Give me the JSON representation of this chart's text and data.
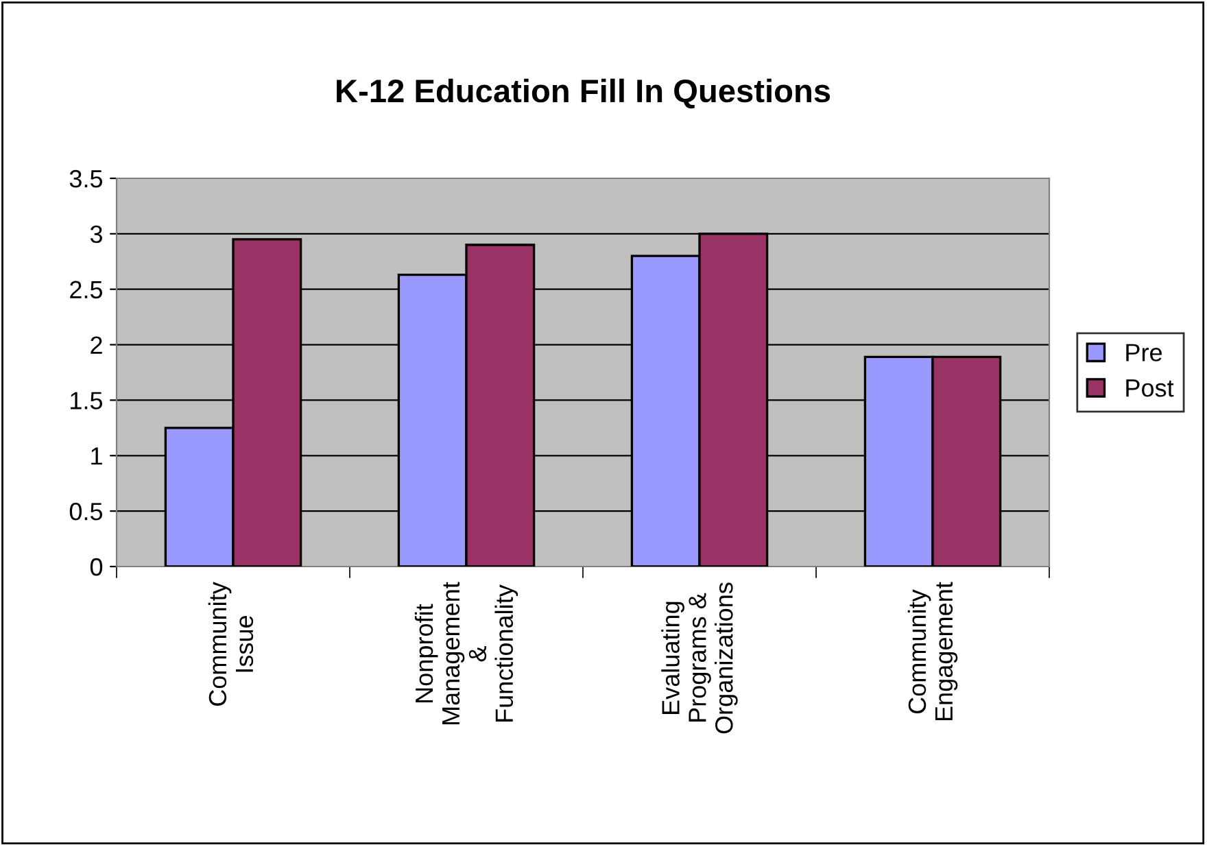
{
  "chart_data": {
    "type": "bar",
    "title": "K-12 Education Fill In Questions",
    "categories": [
      "Community\nIssue",
      "Nonprofit\nManagement\n&\nFunctionality",
      "Evaluating\nPrograms &\nOrganizations",
      "Community\nEngagement"
    ],
    "series": [
      {
        "name": "Pre",
        "color": "#9999ff",
        "values": [
          1.25,
          2.63,
          2.8,
          1.89
        ]
      },
      {
        "name": "Post",
        "color": "#993366",
        "values": [
          2.95,
          2.9,
          3.0,
          1.89
        ]
      }
    ],
    "ylim": [
      0,
      3.5
    ],
    "yticks": [
      0,
      0.5,
      1,
      1.5,
      2,
      2.5,
      3,
      3.5
    ],
    "grid": "y",
    "legend": "right"
  }
}
